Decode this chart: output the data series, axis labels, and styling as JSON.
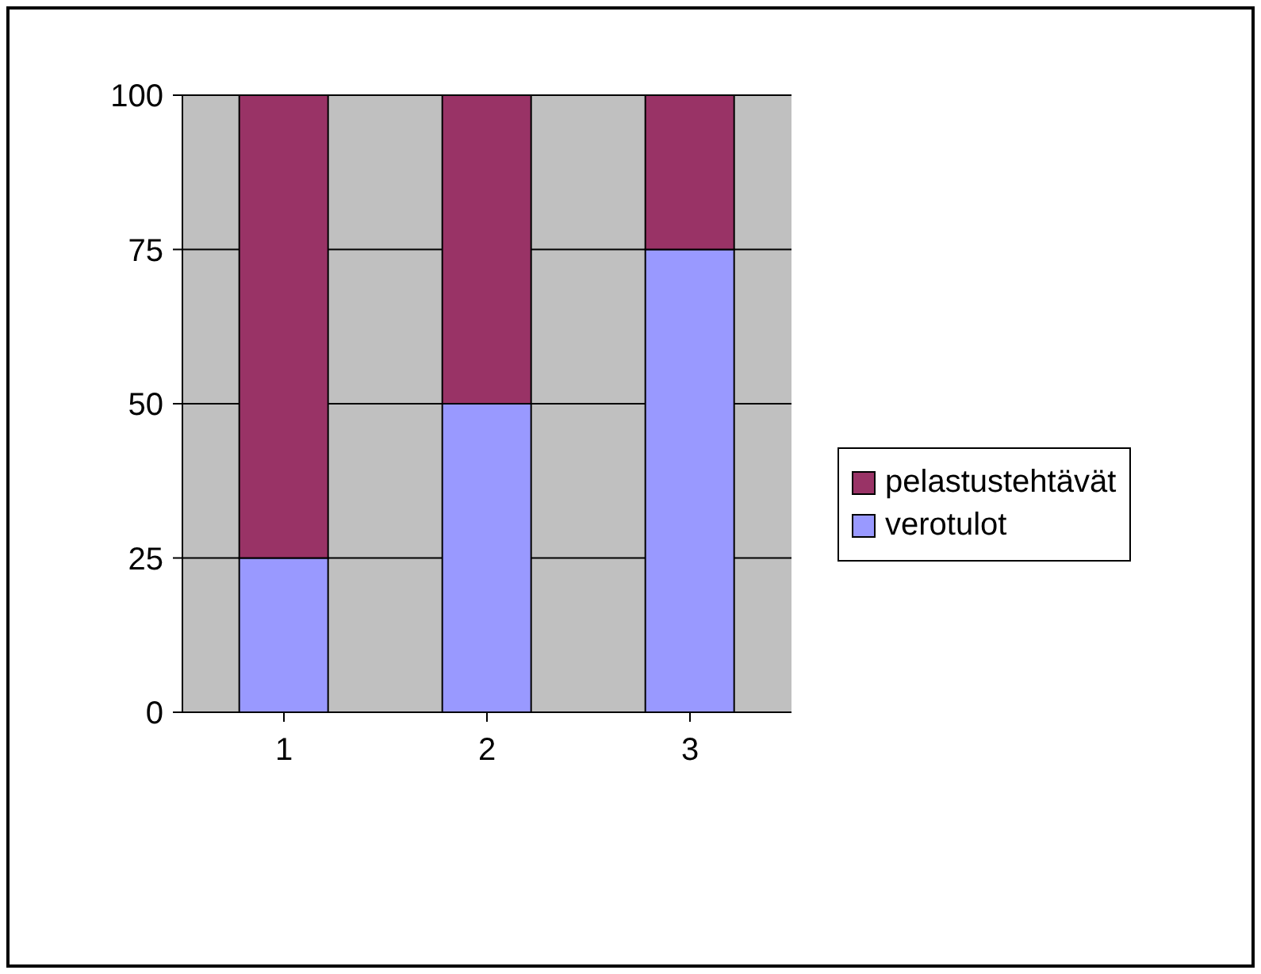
{
  "chart_data": {
    "type": "bar",
    "stacked": true,
    "categories": [
      "1",
      "2",
      "3"
    ],
    "series": [
      {
        "name": "verotulot",
        "color": "#9999ff",
        "values": [
          25,
          50,
          75
        ]
      },
      {
        "name": "pelastustehtävät",
        "color": "#993366",
        "values": [
          75,
          50,
          25
        ]
      }
    ],
    "ylim": [
      0,
      100
    ],
    "yticks": [
      0,
      25,
      50,
      75,
      100
    ],
    "grid": "y",
    "legend": "right"
  }
}
